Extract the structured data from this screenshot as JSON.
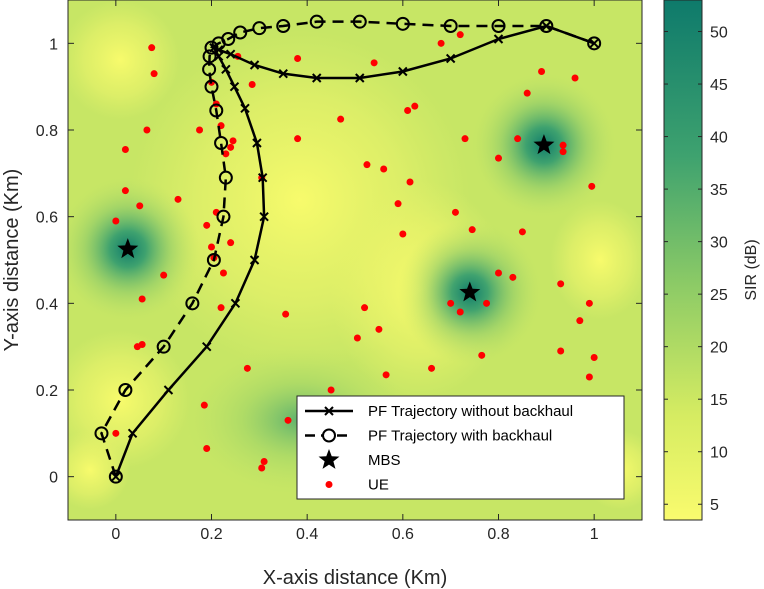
{
  "chart_data": {
    "type": "scatter",
    "title": "",
    "xlabel": "X-axis distance (Km)",
    "ylabel": "Y-axis distance (Km)",
    "xlim": [
      -0.1,
      1.1
    ],
    "ylim": [
      -0.1,
      1.1
    ],
    "x_ticks": [
      "0",
      "0.2",
      "0.4",
      "0.6",
      "0.8",
      "1"
    ],
    "y_ticks": [
      "0",
      "0.2",
      "0.4",
      "0.6",
      "0.8",
      "1"
    ],
    "grid": false,
    "legend_position": "bottom-right",
    "colorbar": {
      "label": "SIR (dB)",
      "range": [
        3.5,
        53
      ],
      "ticks": [
        "5",
        "10",
        "15",
        "20",
        "25",
        "30",
        "35",
        "40",
        "45",
        "50"
      ],
      "colors": [
        "#f9fb6e",
        "#0e7a6b"
      ]
    },
    "background_field": "SIR heat map, peaks at each MBS location",
    "series": [
      {
        "name": "PF Trajectory without backhaul",
        "marker": "x",
        "line_style": "solid",
        "color": "#000000",
        "points": [
          [
            0.0,
            0.0
          ],
          [
            0.035,
            0.1
          ],
          [
            0.11,
            0.2
          ],
          [
            0.19,
            0.3
          ],
          [
            0.25,
            0.4
          ],
          [
            0.29,
            0.5
          ],
          [
            0.31,
            0.6
          ],
          [
            0.307,
            0.69
          ],
          [
            0.295,
            0.77
          ],
          [
            0.27,
            0.85
          ],
          [
            0.248,
            0.9
          ],
          [
            0.23,
            0.94
          ],
          [
            0.215,
            0.97
          ],
          [
            0.205,
            0.99
          ],
          [
            0.215,
            0.985
          ],
          [
            0.24,
            0.975
          ],
          [
            0.29,
            0.95
          ],
          [
            0.35,
            0.93
          ],
          [
            0.42,
            0.92
          ],
          [
            0.51,
            0.92
          ],
          [
            0.6,
            0.935
          ],
          [
            0.7,
            0.965
          ],
          [
            0.8,
            1.01
          ],
          [
            0.9,
            1.04
          ],
          [
            1.0,
            1.0
          ]
        ]
      },
      {
        "name": "PF Trajectory with backhaul",
        "marker": "o",
        "line_style": "dashed",
        "color": "#000000",
        "points": [
          [
            0.0,
            0.0
          ],
          [
            -0.03,
            0.1
          ],
          [
            0.02,
            0.2
          ],
          [
            0.1,
            0.3
          ],
          [
            0.16,
            0.4
          ],
          [
            0.205,
            0.5
          ],
          [
            0.225,
            0.6
          ],
          [
            0.23,
            0.69
          ],
          [
            0.22,
            0.77
          ],
          [
            0.21,
            0.845
          ],
          [
            0.2,
            0.9
          ],
          [
            0.195,
            0.94
          ],
          [
            0.196,
            0.97
          ],
          [
            0.2,
            0.99
          ],
          [
            0.215,
            1.0
          ],
          [
            0.235,
            1.01
          ],
          [
            0.26,
            1.025
          ],
          [
            0.3,
            1.035
          ],
          [
            0.35,
            1.04
          ],
          [
            0.42,
            1.05
          ],
          [
            0.51,
            1.05
          ],
          [
            0.6,
            1.045
          ],
          [
            0.7,
            1.04
          ],
          [
            0.8,
            1.04
          ],
          [
            0.9,
            1.04
          ],
          [
            1.0,
            1.0
          ]
        ]
      },
      {
        "name": "MBS",
        "marker": "star",
        "color": "#000000",
        "points": [
          [
            0.025,
            0.525
          ],
          [
            0.74,
            0.425
          ],
          [
            0.895,
            0.765
          ]
        ]
      },
      {
        "name": "UE",
        "marker": "dot",
        "color": "#ff0000",
        "points": [
          [
            0.075,
            0.99
          ],
          [
            0.08,
            0.93
          ],
          [
            0.065,
            0.8
          ],
          [
            0.02,
            0.755
          ],
          [
            0.02,
            0.66
          ],
          [
            0.05,
            0.625
          ],
          [
            0.0,
            0.59
          ],
          [
            0.1,
            0.465
          ],
          [
            0.055,
            0.41
          ],
          [
            0.045,
            0.3
          ],
          [
            0.055,
            0.305
          ],
          [
            0.0,
            0.1
          ],
          [
            0.13,
            0.64
          ],
          [
            0.175,
            0.8
          ],
          [
            0.2,
            0.91
          ],
          [
            0.21,
            0.86
          ],
          [
            0.22,
            0.81
          ],
          [
            0.24,
            0.76
          ],
          [
            0.245,
            0.775
          ],
          [
            0.23,
            0.745
          ],
          [
            0.255,
            0.97
          ],
          [
            0.285,
            0.905
          ],
          [
            0.305,
            0.69
          ],
          [
            0.24,
            0.54
          ],
          [
            0.205,
            0.505
          ],
          [
            0.2,
            0.53
          ],
          [
            0.21,
            0.61
          ],
          [
            0.19,
            0.58
          ],
          [
            0.225,
            0.47
          ],
          [
            0.22,
            0.39
          ],
          [
            0.275,
            0.25
          ],
          [
            0.185,
            0.165
          ],
          [
            0.19,
            0.065
          ],
          [
            0.31,
            0.035
          ],
          [
            0.305,
            0.02
          ],
          [
            0.355,
            0.375
          ],
          [
            0.36,
            0.13
          ],
          [
            0.38,
            0.965
          ],
          [
            0.38,
            0.78
          ],
          [
            0.47,
            0.825
          ],
          [
            0.45,
            0.2
          ],
          [
            0.505,
            0.32
          ],
          [
            0.52,
            0.39
          ],
          [
            0.525,
            0.72
          ],
          [
            0.54,
            0.955
          ],
          [
            0.55,
            0.34
          ],
          [
            0.565,
            0.235
          ],
          [
            0.56,
            0.71
          ],
          [
            0.59,
            0.63
          ],
          [
            0.6,
            0.56
          ],
          [
            0.61,
            0.845
          ],
          [
            0.615,
            0.68
          ],
          [
            0.625,
            0.855
          ],
          [
            0.66,
            0.25
          ],
          [
            0.68,
            1.0
          ],
          [
            0.7,
            0.4
          ],
          [
            0.72,
            1.02
          ],
          [
            0.71,
            0.61
          ],
          [
            0.72,
            0.38
          ],
          [
            0.73,
            0.78
          ],
          [
            0.745,
            0.57
          ],
          [
            0.765,
            0.28
          ],
          [
            0.775,
            0.4
          ],
          [
            0.8,
            0.735
          ],
          [
            0.8,
            0.47
          ],
          [
            0.83,
            0.46
          ],
          [
            0.85,
            0.565
          ],
          [
            0.84,
            0.78
          ],
          [
            0.86,
            0.885
          ],
          [
            0.89,
            0.935
          ],
          [
            0.895,
            0.765
          ],
          [
            0.935,
            0.765
          ],
          [
            0.935,
            0.75
          ],
          [
            0.93,
            0.445
          ],
          [
            0.93,
            0.29
          ],
          [
            0.96,
            0.92
          ],
          [
            0.97,
            0.36
          ],
          [
            0.99,
            0.4
          ],
          [
            0.99,
            0.23
          ],
          [
            0.995,
            0.67
          ],
          [
            1.0,
            0.275
          ]
        ]
      }
    ]
  }
}
